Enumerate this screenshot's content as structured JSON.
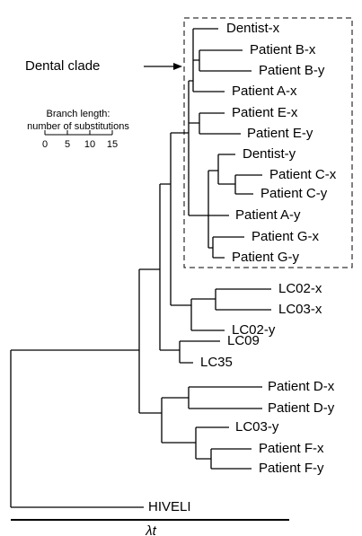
{
  "annotation": "Dental clade",
  "scale": {
    "title": "Branch length:",
    "subtitle": "number of substitutions",
    "ticks": [
      "0",
      "5",
      "10",
      "15"
    ]
  },
  "leaves": [
    "Dentist-x",
    "Patient B-x",
    "Patient B-y",
    "Patient A-x",
    "Patient E-x",
    "Patient E-y",
    "Dentist-y",
    "Patient C-x",
    "Patient C-y",
    "Patient A-y",
    "Patient G-x",
    "Patient G-y",
    "LC02-x",
    "LC03-x",
    "LC02-y",
    "LC09",
    "LC35",
    "Patient D-x",
    "Patient D-y",
    "LC03-y",
    "Patient F-x",
    "Patient F-y",
    "HIVELI"
  ],
  "time_label": "λt"
}
